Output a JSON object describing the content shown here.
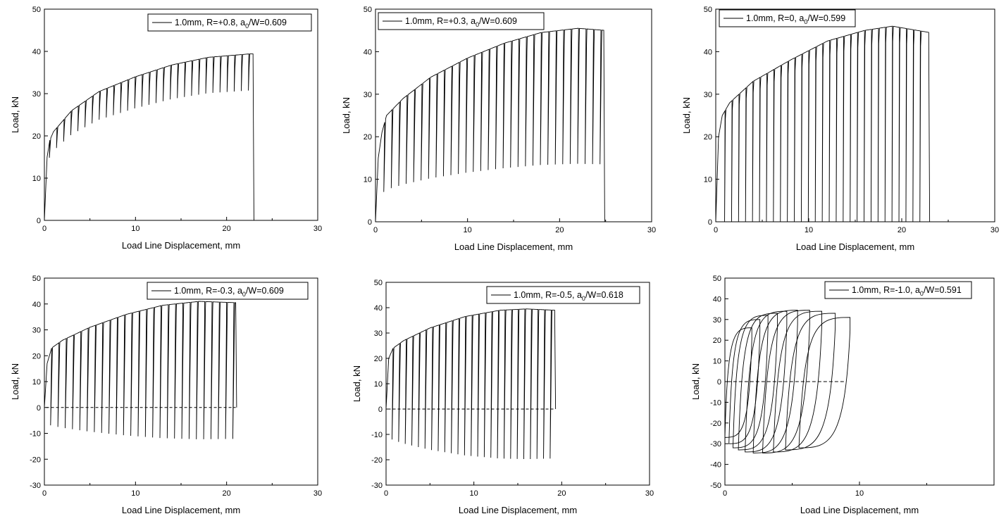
{
  "figure": {
    "background": "#ffffff",
    "line_color": "#000000"
  },
  "chart_data": [
    {
      "type": "line",
      "panel": "R=+0.8",
      "legend": {
        "prefix": "1.0mm, R=+0.8, a",
        "sub": "0",
        "suffix": "/W=0.609",
        "placement": "top-right"
      },
      "xlabel": "Load Line Displacement, mm",
      "ylabel": "Load, kN",
      "xlim": [
        0,
        30
      ],
      "ylim": [
        0,
        50
      ],
      "xticks": [
        0,
        10,
        20,
        30
      ],
      "yticks": [
        0,
        10,
        20,
        30,
        40,
        50
      ],
      "pattern": {
        "envelope": [
          [
            0,
            0
          ],
          [
            0.3,
            15
          ],
          [
            0.6,
            19
          ],
          [
            1,
            21
          ],
          [
            3,
            26
          ],
          [
            6,
            30.5
          ],
          [
            10,
            34
          ],
          [
            14,
            36.8
          ],
          [
            18,
            38.6
          ],
          [
            22.5,
            39.4
          ]
        ],
        "reload_start": 0.6,
        "reload_step": 0.78,
        "cycles": 29,
        "drop_to": "ratio",
        "ratio": 0.78,
        "drop_shift": 0.05,
        "end_x": 22.9,
        "end_drop_to": 0
      }
    },
    {
      "type": "line",
      "panel": "R=+0.3",
      "legend": {
        "prefix": "1.0mm, R=+0.3, a",
        "sub": "0",
        "suffix": "/W=0.609",
        "placement": "top-right"
      },
      "xlabel": "Load Line Displacement, mm",
      "ylabel": "Load, kN",
      "xlim": [
        0,
        30
      ],
      "ylim": [
        0,
        50
      ],
      "xticks": [
        0,
        10,
        20,
        30
      ],
      "yticks": [
        0,
        10,
        20,
        30,
        40,
        50
      ],
      "pattern": {
        "envelope": [
          [
            0,
            0
          ],
          [
            0.3,
            15
          ],
          [
            0.7,
            21
          ],
          [
            1.2,
            25
          ],
          [
            3,
            29
          ],
          [
            6,
            34
          ],
          [
            10,
            38.5
          ],
          [
            14,
            42
          ],
          [
            18,
            44.5
          ],
          [
            22,
            45.5
          ],
          [
            25,
            45
          ]
        ],
        "reload_start": 1.0,
        "reload_step": 0.81,
        "cycles": 30,
        "drop_to": "ratio",
        "ratio": 0.3,
        "drop_shift": 0.1,
        "end_x": 24.8,
        "end_drop_to": 0
      }
    },
    {
      "type": "line",
      "panel": "R=0",
      "legend": {
        "prefix": "1.0mm, R=0, a",
        "sub": "0",
        "suffix": "/W=0.599",
        "placement": "top-right"
      },
      "xlabel": "Load Line Displacement, mm",
      "ylabel": "Load, kN",
      "xlim": [
        0,
        30
      ],
      "ylim": [
        0,
        50
      ],
      "xticks": [
        0,
        10,
        20,
        30
      ],
      "yticks": [
        0,
        10,
        20,
        30,
        40,
        50
      ],
      "pattern": {
        "envelope": [
          [
            0,
            0
          ],
          [
            0.3,
            20
          ],
          [
            0.7,
            25
          ],
          [
            1.5,
            28
          ],
          [
            4,
            33
          ],
          [
            8,
            38
          ],
          [
            12,
            42.5
          ],
          [
            16,
            45
          ],
          [
            19,
            46
          ],
          [
            23,
            44.5
          ]
        ],
        "reload_start": 1.0,
        "reload_step": 0.75,
        "cycles": 29,
        "drop_to": "value",
        "value": 0,
        "drop_shift": 0.05,
        "end_x": 22.9,
        "end_drop_to": 0
      }
    },
    {
      "type": "line",
      "panel": "R=-0.3",
      "legend": {
        "prefix": "1.0mm, R=-0.3, a",
        "sub": "0",
        "suffix": "/W=0.609",
        "placement": "top-right"
      },
      "xlabel": "Load Line Displacement, mm",
      "ylabel": "Load, kN",
      "xlim": [
        0,
        30
      ],
      "ylim": [
        -30,
        50
      ],
      "xticks": [
        0,
        10,
        20,
        30
      ],
      "yticks": [
        -30,
        -20,
        -10,
        0,
        10,
        20,
        30,
        40,
        50
      ],
      "pattern": {
        "envelope": [
          [
            0,
            0
          ],
          [
            0.3,
            17
          ],
          [
            0.8,
            23
          ],
          [
            2,
            26
          ],
          [
            5,
            31
          ],
          [
            9,
            36
          ],
          [
            13,
            39.5
          ],
          [
            17,
            41
          ],
          [
            21,
            40.5
          ]
        ],
        "reload_start": 0.8,
        "reload_step": 0.8,
        "cycles": 26,
        "drop_to": "ratio",
        "ratio": -0.3,
        "drop_shift": 0.12,
        "end_x": 21,
        "end_drop_to": 0
      }
    },
    {
      "type": "line",
      "panel": "R=-0.5",
      "legend": {
        "prefix": "1.0mm, R=-0.5, a",
        "sub": "0",
        "suffix": "/W=0.618",
        "placement": "top-right"
      },
      "xlabel": "Load Line Displacement, mm",
      "ylabel": "Load, kN",
      "xlim": [
        0,
        30
      ],
      "ylim": [
        -30,
        50
      ],
      "xticks": [
        0,
        10,
        20,
        30
      ],
      "yticks": [
        -30,
        -20,
        -10,
        0,
        10,
        20,
        30,
        40,
        50
      ],
      "pattern": {
        "envelope": [
          [
            0,
            0
          ],
          [
            0.3,
            20
          ],
          [
            0.8,
            24
          ],
          [
            2,
            27
          ],
          [
            5,
            32
          ],
          [
            9,
            36.5
          ],
          [
            13,
            39
          ],
          [
            16,
            39.5
          ],
          [
            19.2,
            39
          ]
        ],
        "reload_start": 0.8,
        "reload_step": 0.75,
        "cycles": 25,
        "drop_to": "ratio",
        "ratio": -0.5,
        "drop_shift": 0.12,
        "end_x": 19.2,
        "end_drop_to": 0
      }
    },
    {
      "type": "line",
      "panel": "R=-1.0",
      "legend": {
        "prefix": "1.0mm, R=-1.0, a",
        "sub": "0",
        "suffix": "/W=0.591",
        "placement": "top-right"
      },
      "xlabel": "Load Line Displacement, mm",
      "ylabel": "Load, kN",
      "xlim": [
        0,
        20
      ],
      "ylim": [
        -50,
        50
      ],
      "xticks": [
        0,
        10
      ],
      "yticks": [
        -50,
        -40,
        -30,
        -20,
        -10,
        0,
        10,
        20,
        30,
        40,
        50
      ],
      "hysteresis": {
        "starts": [
          0,
          0.3,
          0.6,
          1.0,
          1.5,
          2.1,
          2.8,
          3.6,
          4.5,
          5.5
        ],
        "peaks": [
          26,
          30,
          32,
          33,
          34,
          34.5,
          34.5,
          34,
          33,
          31
        ],
        "widths": [
          2.0,
          2.3,
          2.6,
          2.9,
          3.1,
          3.3,
          3.5,
          3.6,
          3.7,
          3.8
        ],
        "troughs": [
          -27,
          -30,
          -32,
          -33,
          -34,
          -34.5,
          -34.5,
          -34,
          -33,
          -32
        ]
      }
    }
  ]
}
